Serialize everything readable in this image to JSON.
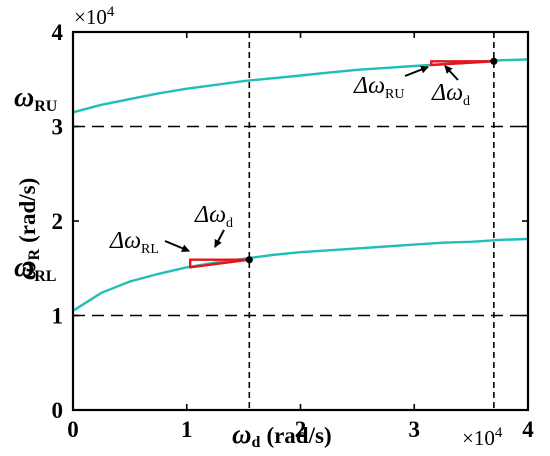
{
  "chart_data": {
    "type": "line",
    "x_axis": {
      "label_symbol": "ω",
      "label_sub": "d",
      "label_unit": "(rad/s)",
      "multiplier_base": "×10",
      "multiplier_exp": "4",
      "ticks": [
        0,
        1,
        2,
        3,
        4
      ],
      "tick_labels": [
        "0",
        "1",
        "2",
        "3",
        "4"
      ],
      "xlim": [
        0,
        4
      ]
    },
    "y_axis": {
      "label_symbol": "ω",
      "label_sub": "R",
      "label_unit": "(rad/s)",
      "multiplier_base": "×10",
      "multiplier_exp": "4",
      "ticks": [
        0,
        1,
        2,
        3,
        4
      ],
      "tick_labels": [
        "0",
        "1",
        "2",
        "3",
        "4"
      ],
      "ylim": [
        0,
        4
      ]
    },
    "series": [
      {
        "color": "#1fbfb8",
        "x": [
          0,
          0.25,
          0.5,
          0.75,
          1.0,
          1.25,
          1.5,
          1.75,
          2.0,
          2.25,
          2.5,
          2.75,
          3.0,
          3.25,
          3.5,
          3.75,
          4.0
        ],
        "y": [
          3.15,
          3.23,
          3.29,
          3.35,
          3.4,
          3.44,
          3.48,
          3.51,
          3.54,
          3.57,
          3.6,
          3.62,
          3.64,
          3.66,
          3.68,
          3.7,
          3.71
        ]
      },
      {
        "color": "#1fbfb8",
        "x": [
          0,
          0.25,
          0.5,
          0.75,
          1.0,
          1.25,
          1.5,
          1.75,
          2.0,
          2.25,
          2.5,
          2.75,
          3.0,
          3.25,
          3.5,
          3.75,
          4.0
        ],
        "y": [
          1.05,
          1.24,
          1.36,
          1.44,
          1.51,
          1.56,
          1.6,
          1.64,
          1.67,
          1.69,
          1.71,
          1.73,
          1.75,
          1.77,
          1.78,
          1.8,
          1.81
        ]
      }
    ],
    "reference_lines": {
      "horizontal": [
        1,
        3
      ],
      "vertical": [
        1.55,
        3.7
      ]
    },
    "marked_points": [
      {
        "x": 1.55,
        "y": 1.59
      },
      {
        "x": 3.7,
        "y": 3.69
      }
    ],
    "triangles": [
      {
        "color": "#e8141c",
        "x_left": 1.03,
        "x_right": 1.55,
        "y_low": 1.51,
        "y_high": 1.59
      },
      {
        "color": "#e8141c",
        "x_left": 3.15,
        "x_right": 3.7,
        "y_low": 3.65,
        "y_high": 3.69
      }
    ],
    "y_side_labels": [
      {
        "symbol": "ω",
        "sub": "RU",
        "y": 3.4
      },
      {
        "symbol": "ω",
        "sub": "RL",
        "y": 1.4
      }
    ],
    "annotations": [
      {
        "symbol": "Δω",
        "sub": "RL"
      },
      {
        "symbol": "Δω",
        "sub": "d"
      },
      {
        "symbol": "Δω",
        "sub": "RU"
      },
      {
        "symbol": "Δω",
        "sub": "d"
      }
    ],
    "grid": false
  }
}
